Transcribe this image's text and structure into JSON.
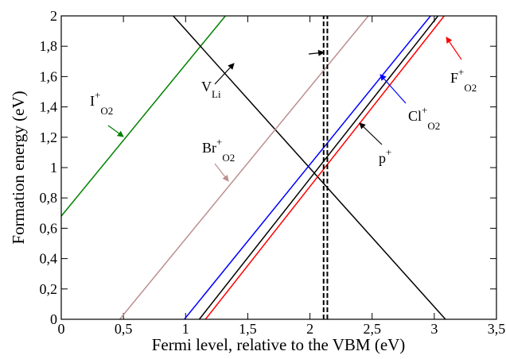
{
  "chart_data": {
    "type": "line",
    "xlabel": "Fermi level, relative to the VBM (eV)",
    "ylabel": "Formation energy (eV)",
    "xlim": [
      0,
      3.5
    ],
    "ylim": [
      0,
      2
    ],
    "xticks": [
      0,
      {
        "value": 0.5,
        "label": "0,5"
      },
      1,
      {
        "value": 1.5,
        "label": "1,5"
      },
      2,
      {
        "value": 2.5,
        "label": "2,5"
      },
      3,
      {
        "value": 3.5,
        "label": "3,5"
      }
    ],
    "yticks": [
      0,
      {
        "value": 0.2,
        "label": "0,2"
      },
      {
        "value": 0.4,
        "label": "0,4"
      },
      {
        "value": 0.6,
        "label": "0,6"
      },
      {
        "value": 0.8,
        "label": "0,8"
      },
      1,
      {
        "value": 1.2,
        "label": "1,2"
      },
      {
        "value": 1.4,
        "label": "1,4"
      },
      {
        "value": 1.6,
        "label": "1,6"
      },
      {
        "value": 1.8,
        "label": "1,8"
      },
      2
    ],
    "series": [
      {
        "color": "#008000",
        "x": [
          0,
          1.32
        ],
        "values": [
          0.68,
          2
        ]
      },
      {
        "color": "#000000",
        "x": [
          0.9,
          3.09
        ],
        "values": [
          2,
          0
        ]
      },
      {
        "color": "#bc8f8f",
        "x": [
          0.47,
          2.47
        ],
        "values": [
          0,
          2
        ]
      },
      {
        "color": "#0000ff",
        "x": [
          0.99,
          2.97
        ],
        "values": [
          0,
          2
        ]
      },
      {
        "color": "#000000",
        "x": [
          1.11,
          3.03
        ],
        "values": [
          0,
          2
        ]
      },
      {
        "color": "#ff0000",
        "x": [
          1.16,
          3.08
        ],
        "values": [
          0,
          2
        ]
      },
      {
        "color": "#000000",
        "dashed": true,
        "x": [
          2.11,
          2.11
        ],
        "values": [
          0,
          2
        ]
      },
      {
        "color": "#000000",
        "dashed": true,
        "x": [
          2.14,
          2.14
        ],
        "values": [
          0,
          2
        ]
      }
    ],
    "annotations": [
      {
        "text": "I",
        "sup": "+",
        "sub": "O2",
        "color": "#008000"
      },
      {
        "text": "V",
        "sub": "Li",
        "color": "#000000"
      },
      {
        "text": "Br",
        "sup": "+",
        "sub": "O2",
        "color": "#bc8f8f"
      },
      {
        "text": "Cl",
        "sup": "+",
        "sub": "O2",
        "color": "#0000ff"
      },
      {
        "text": "p",
        "sup": "+",
        "color": "#000000"
      },
      {
        "text": "F",
        "sup": "+",
        "sub": "O2",
        "color": "#ff0000"
      }
    ]
  }
}
